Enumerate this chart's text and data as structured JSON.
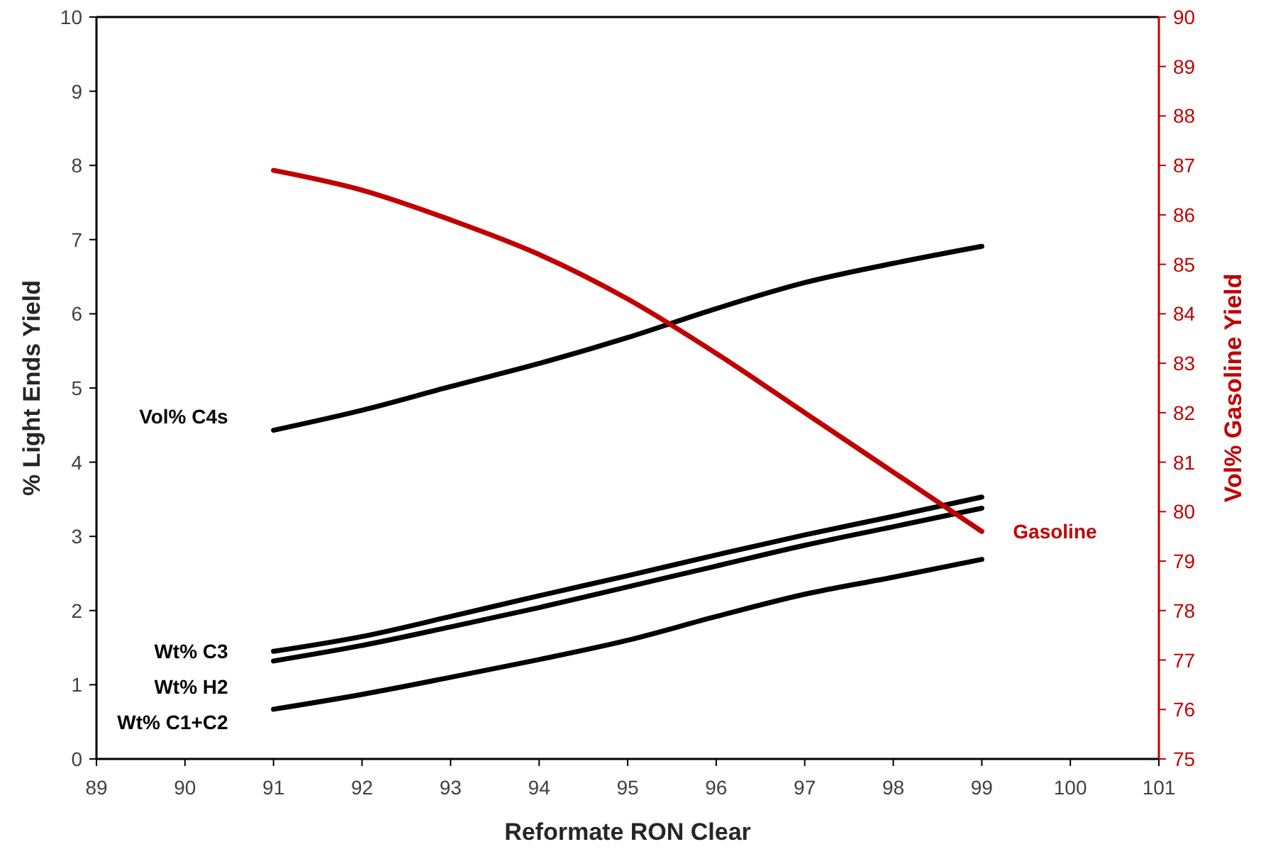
{
  "chart_data": {
    "type": "line",
    "xlabel": "Reformate RON Clear",
    "ylabel": "% Light Ends Yield",
    "y2label": "Vol% Gasoline Yield",
    "x": [
      91,
      92,
      93,
      94,
      95,
      96,
      97,
      98,
      99
    ],
    "xlim": [
      89,
      101
    ],
    "xticks": [
      89,
      90,
      91,
      92,
      93,
      94,
      95,
      96,
      97,
      98,
      99,
      100,
      101
    ],
    "ylim": [
      0,
      10
    ],
    "yticks": [
      0,
      1,
      2,
      3,
      4,
      5,
      6,
      7,
      8,
      9,
      10
    ],
    "y2lim": [
      75,
      90
    ],
    "y2ticks": [
      75,
      76,
      77,
      78,
      79,
      80,
      81,
      82,
      83,
      84,
      85,
      86,
      87,
      88,
      89,
      90
    ],
    "grid": false,
    "marker": "none",
    "line_style": "solid",
    "series": [
      {
        "name": "Vol% C4s",
        "color": "#000000",
        "values": [
          4.43,
          4.7,
          5.02,
          5.33,
          5.68,
          6.07,
          6.42,
          6.68,
          6.91
        ]
      },
      {
        "name": "Wt% C3",
        "color": "#000000",
        "values": [
          1.45,
          1.65,
          1.92,
          2.2,
          2.47,
          2.75,
          3.02,
          3.27,
          3.53
        ]
      },
      {
        "name": "Wt% H2",
        "color": "#000000",
        "values": [
          1.32,
          1.53,
          1.78,
          2.04,
          2.32,
          2.6,
          2.88,
          3.13,
          3.38
        ]
      },
      {
        "name": "Wt% C1+C2",
        "color": "#000000",
        "values": [
          0.67,
          0.87,
          1.1,
          1.34,
          1.6,
          1.92,
          2.22,
          2.45,
          2.69
        ]
      },
      {
        "name": "Gasoline",
        "color": "#c00000",
        "axis": "y2",
        "values": [
          86.9,
          86.5,
          85.9,
          85.2,
          84.3,
          83.2,
          82.0,
          80.8,
          79.6
        ]
      }
    ]
  }
}
